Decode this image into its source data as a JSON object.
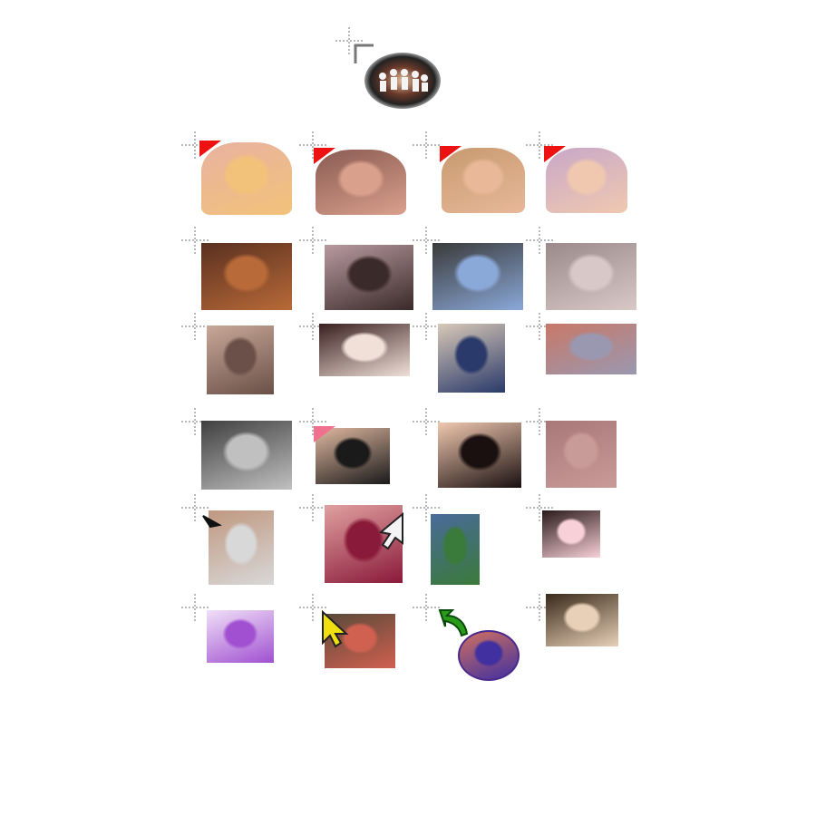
{
  "page": {
    "background": "#ffffff"
  },
  "colors": {
    "corner_flag": "#ee1111",
    "crosshair": "#b8b8b8"
  },
  "header_item": {
    "name": "group-photo-avatar",
    "icon": "group-photo-icon"
  },
  "grid": {
    "rows": [
      {
        "items": [
          {
            "name": "avatar-1-1",
            "flag": "red"
          },
          {
            "name": "avatar-1-2",
            "flag": "red"
          },
          {
            "name": "avatar-1-3",
            "flag": "red"
          },
          {
            "name": "avatar-1-4",
            "flag": "red"
          }
        ]
      },
      {
        "items": [
          {
            "name": "avatar-2-1"
          },
          {
            "name": "avatar-2-2"
          },
          {
            "name": "avatar-2-3"
          },
          {
            "name": "avatar-2-4"
          }
        ]
      },
      {
        "items": [
          {
            "name": "avatar-3-1"
          },
          {
            "name": "avatar-3-2"
          },
          {
            "name": "avatar-3-3"
          },
          {
            "name": "avatar-3-4"
          }
        ]
      },
      {
        "items": [
          {
            "name": "avatar-4-1"
          },
          {
            "name": "avatar-4-2",
            "flag": "pink"
          },
          {
            "name": "avatar-4-3"
          },
          {
            "name": "avatar-4-4"
          }
        ]
      },
      {
        "items": [
          {
            "name": "avatar-5-1",
            "cursor": "black-arrow-cursor-icon"
          },
          {
            "name": "avatar-5-2",
            "cursor": "white-arrow-cursor-icon"
          },
          {
            "name": "avatar-5-3"
          },
          {
            "name": "avatar-5-4"
          }
        ]
      },
      {
        "items": [
          {
            "name": "avatar-6-1"
          },
          {
            "name": "avatar-6-2",
            "cursor": "yellow-arrow-cursor-icon"
          },
          {
            "name": "avatar-6-3",
            "cursor": "green-curved-arrow-icon"
          },
          {
            "name": "avatar-6-4"
          }
        ]
      }
    ]
  }
}
